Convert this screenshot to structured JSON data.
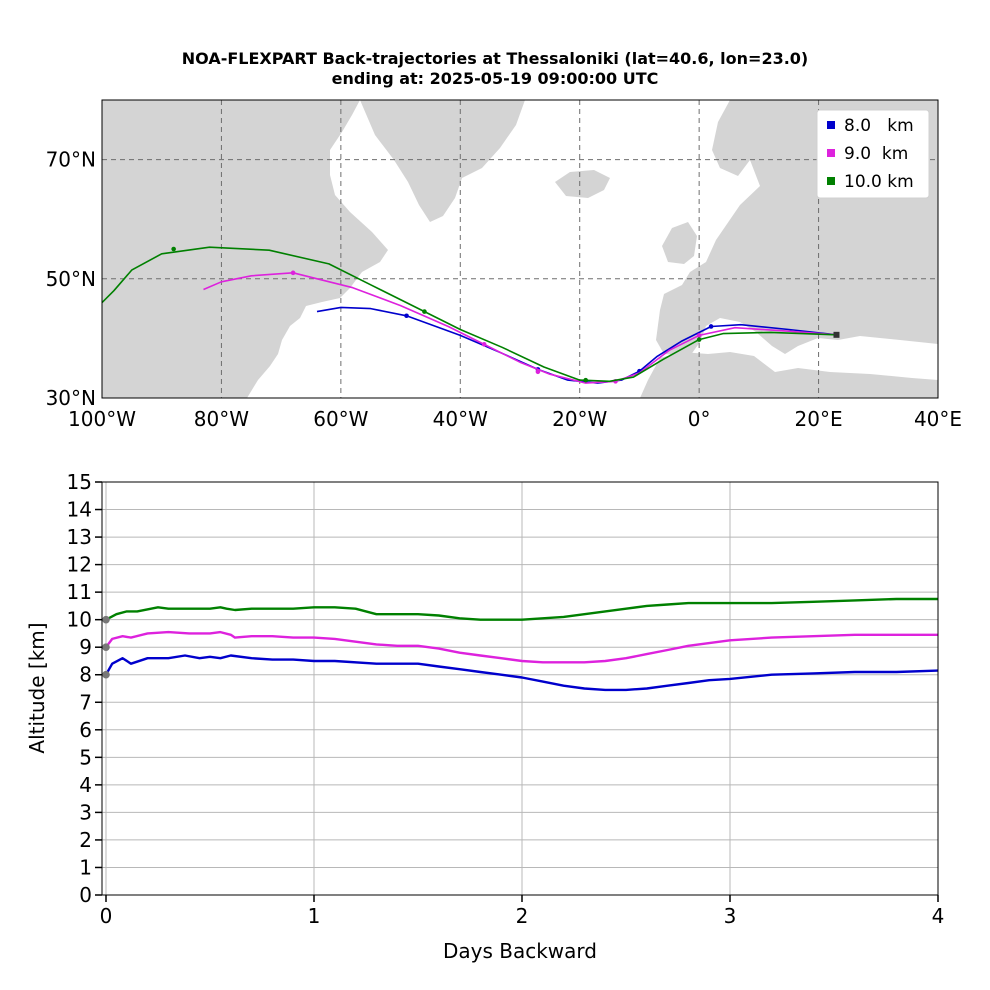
{
  "chart_data": [
    {
      "type": "line",
      "title": "NOA-FLEXPART Back-trajectories at Thessaloniki (lat=40.6, lon=23.0)",
      "subtitle": "ending at: 2025-05-19  09:00:00 UTC",
      "xlabel": "",
      "ylabel": "",
      "xlim": [
        -100,
        40
      ],
      "ylim": [
        30,
        80
      ],
      "x_ticks": [
        -100,
        -80,
        -60,
        -40,
        -20,
        0,
        20,
        40
      ],
      "x_tick_labels": [
        "100°W",
        "80°W",
        "60°W",
        "40°W",
        "20°W",
        "0°",
        "20°E",
        "40°E"
      ],
      "y_ticks": [
        30,
        50,
        70
      ],
      "y_tick_labels": [
        "30°N",
        "50°N",
        "70°N"
      ],
      "grid": true,
      "legend_position": "top-right",
      "series": [
        {
          "name": "8.0   km",
          "color": "#0000cc",
          "points": [
            [
              23.0,
              40.6
            ],
            [
              15,
              41.5
            ],
            [
              7,
              42.3
            ],
            [
              2,
              42.0
            ],
            [
              -3,
              39.5
            ],
            [
              -7,
              37
            ],
            [
              -10,
              34.5
            ],
            [
              -13,
              33.0
            ],
            [
              -17,
              32.5
            ],
            [
              -22,
              33.0
            ],
            [
              -27,
              34.8
            ],
            [
              -33,
              37.5
            ],
            [
              -40,
              40.5
            ],
            [
              -49,
              43.8
            ],
            [
              -55,
              45.0
            ],
            [
              -60,
              45.2
            ],
            [
              -64,
              44.5
            ]
          ],
          "markers": [
            [
              23.0,
              40.6
            ],
            [
              2,
              42.0
            ],
            [
              -10,
              34.5
            ],
            [
              -27,
              34.8
            ],
            [
              -49,
              43.8
            ]
          ]
        },
        {
          "name": "9.0  km",
          "color": "#dd22dd",
          "points": [
            [
              23.0,
              40.6
            ],
            [
              15,
              41.2
            ],
            [
              6,
              41.8
            ],
            [
              0,
              40.5
            ],
            [
              -5,
              38
            ],
            [
              -10,
              34.2
            ],
            [
              -14,
              32.8
            ],
            [
              -19,
              32.5
            ],
            [
              -25,
              34.0
            ],
            [
              -30,
              36
            ],
            [
              -36,
              39
            ],
            [
              -42,
              42
            ],
            [
              -50,
              45.5
            ],
            [
              -58,
              48.5
            ],
            [
              -68,
              51.0
            ],
            [
              -75,
              50.5
            ],
            [
              -80,
              49.5
            ],
            [
              -83,
              48.2
            ]
          ],
          "markers": [
            [
              23.0,
              40.6
            ],
            [
              0,
              40.5
            ],
            [
              -14,
              32.8
            ],
            [
              -27,
              34.4
            ],
            [
              -36,
              39
            ],
            [
              -68,
              51.0
            ]
          ]
        },
        {
          "name": "10.0 km",
          "color": "#008000",
          "points": [
            [
              23.0,
              40.6
            ],
            [
              12,
              41.0
            ],
            [
              4,
              40.8
            ],
            [
              0,
              39.8
            ],
            [
              -6,
              36.5
            ],
            [
              -11,
              33.5
            ],
            [
              -15,
              32.8
            ],
            [
              -20,
              33.0
            ],
            [
              -26,
              35.2
            ],
            [
              -33,
              38.5
            ],
            [
              -40,
              41.5
            ],
            [
              -47,
              45.0
            ],
            [
              -55,
              49.0
            ],
            [
              -62,
              52.5
            ],
            [
              -72,
              54.8
            ],
            [
              -82,
              55.3
            ],
            [
              -90,
              54.2
            ],
            [
              -95,
              51.5
            ],
            [
              -98,
              48.0
            ],
            [
              -100,
              46.0
            ]
          ],
          "markers": [
            [
              23.0,
              40.6
            ],
            [
              0,
              39.8
            ],
            [
              -19,
              33.0
            ],
            [
              -46,
              44.5
            ],
            [
              -88,
              55.0
            ]
          ]
        }
      ]
    },
    {
      "type": "line",
      "title": "",
      "xlabel": "Days Backward",
      "ylabel": "Altitude [km]",
      "xlim": [
        0,
        4
      ],
      "ylim": [
        0,
        15
      ],
      "x_ticks": [
        0,
        1,
        2,
        3,
        4
      ],
      "y_ticks": [
        0,
        1,
        2,
        3,
        4,
        5,
        6,
        7,
        8,
        9,
        10,
        11,
        12,
        13,
        14,
        15
      ],
      "grid": true,
      "series": [
        {
          "name": "8.0   km",
          "color": "#0000cc",
          "x": [
            0,
            0.03,
            0.08,
            0.12,
            0.2,
            0.3,
            0.38,
            0.45,
            0.5,
            0.55,
            0.6,
            0.7,
            0.8,
            0.9,
            1.0,
            1.1,
            1.3,
            1.5,
            1.6,
            1.7,
            1.8,
            1.9,
            2.0,
            2.1,
            2.2,
            2.3,
            2.4,
            2.5,
            2.6,
            2.7,
            2.8,
            2.9,
            3.0,
            3.2,
            3.4,
            3.6,
            3.8,
            4.0
          ],
          "y": [
            8.0,
            8.4,
            8.6,
            8.4,
            8.6,
            8.6,
            8.7,
            8.6,
            8.65,
            8.6,
            8.7,
            8.6,
            8.55,
            8.55,
            8.5,
            8.5,
            8.4,
            8.4,
            8.3,
            8.2,
            8.1,
            8.0,
            7.9,
            7.75,
            7.6,
            7.5,
            7.45,
            7.45,
            7.5,
            7.6,
            7.7,
            7.8,
            7.85,
            8.0,
            8.05,
            8.1,
            8.1,
            8.15
          ]
        },
        {
          "name": "9.0  km",
          "color": "#dd22dd",
          "x": [
            0,
            0.03,
            0.08,
            0.12,
            0.2,
            0.3,
            0.4,
            0.5,
            0.55,
            0.6,
            0.62,
            0.7,
            0.8,
            0.9,
            1.0,
            1.1,
            1.2,
            1.3,
            1.4,
            1.5,
            1.6,
            1.7,
            1.8,
            1.9,
            2.0,
            2.1,
            2.2,
            2.3,
            2.4,
            2.5,
            2.6,
            2.7,
            2.8,
            2.9,
            3.0,
            3.2,
            3.4,
            3.6,
            3.8,
            4.0
          ],
          "y": [
            9.0,
            9.3,
            9.4,
            9.35,
            9.5,
            9.55,
            9.5,
            9.5,
            9.55,
            9.45,
            9.35,
            9.4,
            9.4,
            9.35,
            9.35,
            9.3,
            9.2,
            9.1,
            9.05,
            9.05,
            8.95,
            8.8,
            8.7,
            8.6,
            8.5,
            8.45,
            8.45,
            8.45,
            8.5,
            8.6,
            8.75,
            8.9,
            9.05,
            9.15,
            9.25,
            9.35,
            9.4,
            9.45,
            9.45,
            9.45
          ]
        },
        {
          "name": "10.0 km",
          "color": "#008000",
          "x": [
            0,
            0.05,
            0.1,
            0.15,
            0.25,
            0.3,
            0.4,
            0.5,
            0.55,
            0.58,
            0.62,
            0.7,
            0.8,
            0.9,
            1.0,
            1.1,
            1.2,
            1.3,
            1.4,
            1.5,
            1.6,
            1.7,
            1.8,
            1.9,
            2.0,
            2.1,
            2.2,
            2.3,
            2.4,
            2.5,
            2.6,
            2.7,
            2.8,
            2.9,
            3.0,
            3.2,
            3.4,
            3.6,
            3.8,
            4.0
          ],
          "y": [
            10.0,
            10.2,
            10.3,
            10.3,
            10.45,
            10.4,
            10.4,
            10.4,
            10.45,
            10.4,
            10.35,
            10.4,
            10.4,
            10.4,
            10.45,
            10.45,
            10.4,
            10.2,
            10.2,
            10.2,
            10.15,
            10.05,
            10.0,
            10.0,
            10.0,
            10.05,
            10.1,
            10.2,
            10.3,
            10.4,
            10.5,
            10.55,
            10.6,
            10.6,
            10.6,
            10.6,
            10.65,
            10.7,
            10.75,
            10.75
          ]
        }
      ]
    }
  ]
}
